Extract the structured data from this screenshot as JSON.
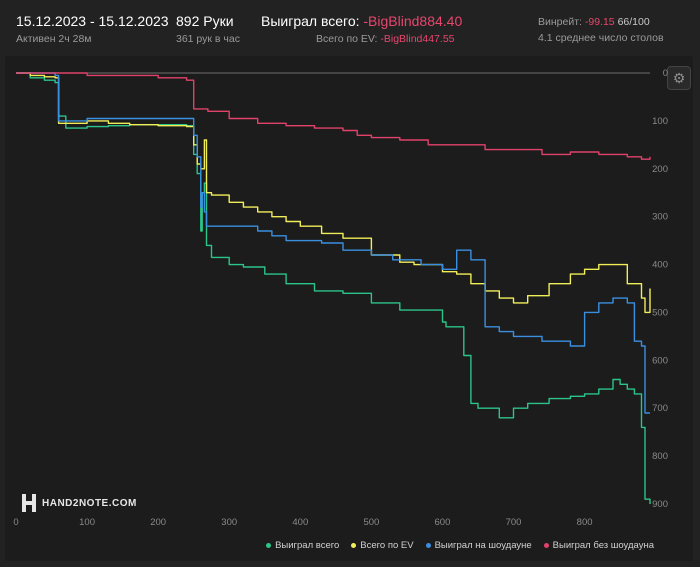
{
  "header": {
    "date_range": "15.12.2023 - 15.12.2023",
    "active": "Активен 2ч 28м",
    "hands": "892 Руки",
    "hands_per_hour": "361 рук в час",
    "won_total_label": "Выиграл всего:",
    "won_total_value": "-BigBlind884.40",
    "ev_total_label": "Всего по EV:",
    "ev_total_value": "-BigBlind447.55",
    "winrate_label": "Винрейт:",
    "winrate_value": "-99.15",
    "winrate_suffix": "66/100",
    "tables": "4.1 среднее число столов"
  },
  "logo_text": "HAND2NOTE.COM",
  "gear_icon": "gear-icon",
  "chart_data": {
    "type": "line",
    "xlim": [
      0,
      892
    ],
    "ylim": [
      0,
      900
    ],
    "y_inverted": true,
    "x_ticks": [
      "0",
      "100",
      "200",
      "300",
      "400",
      "500",
      "600",
      "700",
      "800"
    ],
    "y_ticks": [
      "0",
      "100",
      "200",
      "300",
      "400",
      "500",
      "600",
      "700",
      "800",
      "900"
    ],
    "grid": false,
    "legend_position": "bottom-right",
    "series": [
      {
        "name": "Выиграл всего",
        "color": "#2bc48a",
        "x": [
          0,
          20,
          40,
          55,
          60,
          70,
          100,
          130,
          160,
          200,
          240,
          250,
          255,
          260,
          262,
          265,
          268,
          275,
          300,
          320,
          350,
          380,
          420,
          460,
          500,
          540,
          600,
          605,
          630,
          640,
          650,
          680,
          700,
          720,
          750,
          780,
          800,
          820,
          840,
          850,
          860,
          870,
          880,
          885,
          892
        ],
        "y": [
          0,
          10,
          15,
          20,
          90,
          115,
          112,
          110,
          108,
          108,
          110,
          170,
          210,
          330,
          250,
          230,
          360,
          385,
          400,
          405,
          420,
          440,
          455,
          460,
          480,
          495,
          520,
          530,
          590,
          690,
          700,
          720,
          700,
          690,
          680,
          675,
          670,
          660,
          640,
          650,
          660,
          670,
          740,
          890,
          900
        ]
      },
      {
        "name": "Всего по EV",
        "color": "#f2ee58",
        "x": [
          0,
          20,
          40,
          55,
          60,
          70,
          100,
          130,
          160,
          200,
          240,
          250,
          255,
          260,
          265,
          268,
          275,
          300,
          320,
          340,
          360,
          380,
          400,
          430,
          460,
          500,
          540,
          560,
          600,
          620,
          640,
          660,
          680,
          700,
          720,
          750,
          780,
          800,
          820,
          840,
          860,
          880,
          885,
          892
        ],
        "y": [
          0,
          5,
          8,
          10,
          105,
          105,
          100,
          105,
          108,
          110,
          112,
          150,
          190,
          200,
          140,
          250,
          255,
          270,
          280,
          290,
          300,
          310,
          320,
          335,
          345,
          380,
          395,
          400,
          415,
          420,
          440,
          455,
          470,
          480,
          465,
          440,
          420,
          410,
          400,
          400,
          440,
          470,
          500,
          450
        ]
      },
      {
        "name": "Выиграл на шоудауне",
        "color": "#3a8fe0",
        "x": [
          0,
          55,
          60,
          70,
          100,
          160,
          240,
          250,
          255,
          260,
          262,
          265,
          268,
          275,
          300,
          340,
          360,
          380,
          400,
          430,
          460,
          500,
          530,
          570,
          600,
          620,
          640,
          660,
          680,
          700,
          720,
          740,
          760,
          780,
          800,
          820,
          840,
          860,
          870,
          880,
          885,
          892
        ],
        "y": [
          0,
          5,
          100,
          100,
          95,
          95,
          95,
          130,
          175,
          280,
          250,
          290,
          320,
          320,
          320,
          330,
          340,
          350,
          350,
          355,
          370,
          380,
          390,
          400,
          410,
          370,
          390,
          530,
          540,
          550,
          550,
          560,
          560,
          570,
          500,
          480,
          470,
          480,
          560,
          570,
          710,
          710
        ]
      },
      {
        "name": "Выиграл без шоудауна",
        "color": "#e0426a",
        "x": [
          0,
          40,
          60,
          100,
          150,
          200,
          240,
          250,
          270,
          300,
          340,
          380,
          420,
          460,
          480,
          500,
          540,
          580,
          620,
          660,
          700,
          740,
          780,
          820,
          860,
          880,
          892
        ],
        "y": [
          0,
          0,
          0,
          5,
          5,
          10,
          15,
          75,
          80,
          95,
          105,
          110,
          115,
          120,
          130,
          135,
          140,
          150,
          150,
          160,
          160,
          170,
          165,
          170,
          175,
          180,
          175
        ]
      }
    ]
  }
}
